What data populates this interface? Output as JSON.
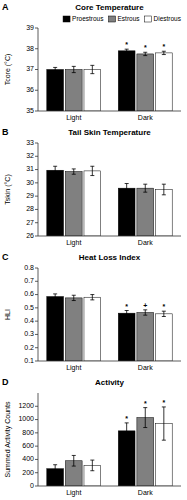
{
  "chart_data": [
    {
      "type": "bar",
      "label": "A",
      "title": "Core Temperature",
      "y_label": "Tcore (°C)",
      "categories": [
        "Light",
        "Dark"
      ],
      "series": [
        {
          "name": "Proestrous",
          "color": "#000000",
          "values": [
            37.0,
            37.9
          ],
          "errors": [
            0.1,
            0.08
          ],
          "annotations": [
            null,
            "*"
          ]
        },
        {
          "name": "Estrous",
          "color": "#808080",
          "values": [
            37.0,
            37.75
          ],
          "errors": [
            0.15,
            0.08
          ],
          "annotations": [
            null,
            "*"
          ]
        },
        {
          "name": "Diestrous",
          "color": "#ffffff",
          "values": [
            37.0,
            37.8
          ],
          "errors": [
            0.2,
            0.08
          ],
          "annotations": [
            null,
            "*"
          ]
        }
      ],
      "ylim": [
        35,
        39
      ],
      "yticks": [
        35,
        36,
        37,
        38,
        39
      ],
      "grid": false,
      "legend": "top"
    },
    {
      "type": "bar",
      "label": "B",
      "title": "Tail Skin Temperature",
      "y_label": "Tskin (°C)",
      "categories": [
        "Light",
        "Dark"
      ],
      "series": [
        {
          "color": "#000000",
          "values": [
            30.95,
            29.6
          ],
          "errors": [
            0.3,
            0.35
          ]
        },
        {
          "color": "#808080",
          "values": [
            30.85,
            29.6
          ],
          "errors": [
            0.2,
            0.3
          ]
        },
        {
          "color": "#ffffff",
          "values": [
            30.9,
            29.5
          ],
          "errors": [
            0.35,
            0.4
          ]
        }
      ],
      "ylim": [
        26,
        33
      ],
      "yticks": [
        26,
        27,
        28,
        29,
        30,
        31,
        32,
        33
      ],
      "grid": false
    },
    {
      "type": "bar",
      "label": "C",
      "title": "Heat Loss Index",
      "y_label": "HLI",
      "categories": [
        "Light",
        "Dark"
      ],
      "series": [
        {
          "color": "#000000",
          "values": [
            0.585,
            0.46
          ],
          "errors": [
            0.02,
            0.02
          ],
          "annotations": [
            null,
            "*"
          ]
        },
        {
          "color": "#808080",
          "values": [
            0.575,
            0.465
          ],
          "errors": [
            0.02,
            0.02
          ],
          "annotations": [
            null,
            "+"
          ]
        },
        {
          "color": "#ffffff",
          "values": [
            0.58,
            0.455
          ],
          "errors": [
            0.02,
            0.02
          ],
          "annotations": [
            null,
            "*"
          ]
        }
      ],
      "ylim": [
        0.1,
        0.8
      ],
      "yticks": [
        0.1,
        0.2,
        0.3,
        0.4,
        0.5,
        0.6,
        0.7,
        0.8
      ],
      "grid": false
    },
    {
      "type": "bar",
      "label": "D",
      "title": "Activity",
      "y_label": "Summed Activity Counts",
      "categories": [
        "Light",
        "Dark"
      ],
      "series": [
        {
          "color": "#000000",
          "values": [
            260,
            830
          ],
          "errors": [
            60,
            120
          ],
          "annotations": [
            null,
            "*"
          ]
        },
        {
          "color": "#808080",
          "values": [
            380,
            1030
          ],
          "errors": [
            80,
            150
          ],
          "annotations": [
            null,
            "*"
          ]
        },
        {
          "color": "#ffffff",
          "values": [
            310,
            940
          ],
          "errors": [
            80,
            250
          ],
          "annotations": [
            null,
            "*"
          ]
        }
      ],
      "ylim": [
        0,
        1400
      ],
      "yticks": [
        0,
        200,
        400,
        600,
        800,
        1000,
        1200
      ],
      "grid": false
    }
  ]
}
